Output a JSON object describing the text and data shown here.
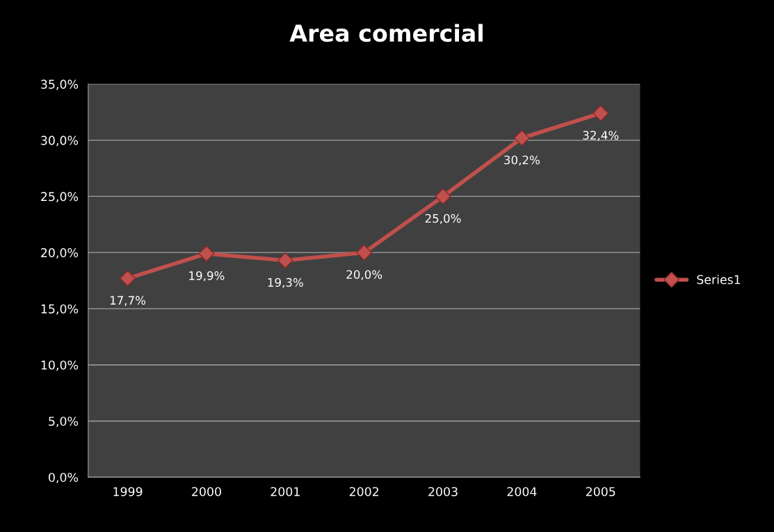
{
  "chart_data": {
    "type": "line",
    "title": "Area comercial",
    "categories": [
      "1999",
      "2000",
      "2001",
      "2002",
      "2003",
      "2004",
      "2005"
    ],
    "series": [
      {
        "name": "Series1",
        "color": "#c0504d",
        "values": [
          17.7,
          19.9,
          19.3,
          20.0,
          25.0,
          30.2,
          32.4
        ],
        "value_labels": [
          "17,7%",
          "19,9%",
          "19,3%",
          "20,0%",
          "25,0%",
          "30,2%",
          "32,4%"
        ]
      }
    ],
    "ylim": [
      0,
      35
    ],
    "yticks": [
      {
        "value": 0,
        "label": "0,0%"
      },
      {
        "value": 5,
        "label": "5,0%"
      },
      {
        "value": 10,
        "label": "10,0%"
      },
      {
        "value": 15,
        "label": "15,0%"
      },
      {
        "value": 20,
        "label": "20,0%"
      },
      {
        "value": 25,
        "label": "25,0%"
      },
      {
        "value": 30,
        "label": "30,0%"
      },
      {
        "value": 35,
        "label": "35,0%"
      }
    ],
    "grid": "y",
    "legend": "right",
    "marker": "diamond",
    "line_style": "solid"
  }
}
